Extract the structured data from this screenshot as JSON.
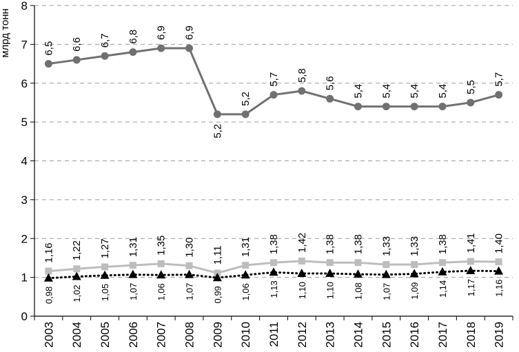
{
  "chart_data": {
    "type": "line",
    "ylabel": "млрд тонн",
    "ylim": [
      0,
      8
    ],
    "yticks": [
      "0",
      "1",
      "2",
      "3",
      "4",
      "5",
      "6",
      "7",
      "8"
    ],
    "grid": "horizontal-dashed",
    "categories": [
      "2003",
      "2004",
      "2005",
      "2006",
      "2007",
      "2008",
      "2009",
      "2010",
      "2011",
      "2012",
      "2013",
      "2014",
      "2015",
      "2016",
      "2017",
      "2018",
      "2019"
    ],
    "series": [
      {
        "marker": "circle",
        "line": "solid",
        "color": "#707070",
        "values": [
          6.5,
          6.6,
          6.7,
          6.8,
          6.9,
          6.9,
          5.2,
          5.2,
          5.7,
          5.8,
          5.6,
          5.4,
          5.4,
          5.4,
          5.4,
          5.5,
          5.7
        ],
        "labels": [
          "6,5",
          "6,6",
          "6,7",
          "6,8",
          "6,9",
          "6,9",
          "5,2",
          "5,2",
          "5,7",
          "5,8",
          "5,6",
          "5,4",
          "5,4",
          "5,4",
          "5,4",
          "5,5",
          "5,7"
        ]
      },
      {
        "marker": "square",
        "line": "solid",
        "color": "#bdbdbd",
        "values": [
          1.16,
          1.22,
          1.27,
          1.31,
          1.35,
          1.3,
          1.11,
          1.31,
          1.38,
          1.42,
          1.38,
          1.38,
          1.33,
          1.33,
          1.38,
          1.41,
          1.4
        ],
        "labels": [
          "1,16",
          "1,22",
          "1,27",
          "1,31",
          "1,35",
          "1,30",
          "1,11",
          "1,31",
          "1,38",
          "1,42",
          "1,38",
          "1,38",
          "1,33",
          "1,33",
          "1,38",
          "1,41",
          "1,40"
        ]
      },
      {
        "marker": "triangle",
        "line": "dotted",
        "color": "#000000",
        "values": [
          0.98,
          1.02,
          1.05,
          1.07,
          1.06,
          1.07,
          0.99,
          1.06,
          1.13,
          1.1,
          1.1,
          1.08,
          1.07,
          1.09,
          1.14,
          1.17,
          1.16
        ],
        "labels": [
          "0,98",
          "1,02",
          "1,05",
          "1,07",
          "1,06",
          "1,07",
          "0,99",
          "1,06",
          "1,13",
          "1,10",
          "1,10",
          "1,08",
          "1,07",
          "1,09",
          "1,14",
          "1,17",
          "1,16"
        ]
      }
    ]
  }
}
